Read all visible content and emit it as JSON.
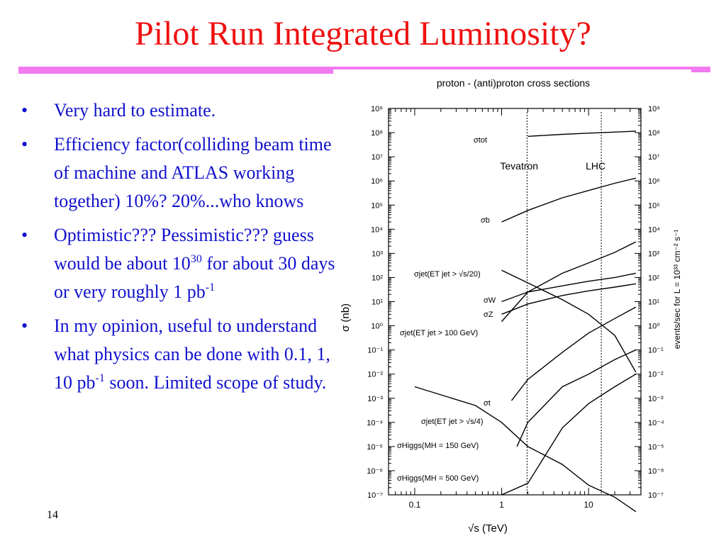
{
  "slide": {
    "title": "Pilot Run Integrated Luminosity?",
    "page_number": "14",
    "bullets": [
      {
        "text": "Very hard to estimate."
      },
      {
        "text": "Efficiency factor(colliding beam time of machine and ATLAS working together) 10%? 20%...who knows"
      },
      {
        "pre": "Optimistic??? Pessimistic??? guess would be about 10",
        "sup": "30",
        "mid": " for about 30 days or very roughly 1 pb",
        "sup2": "-1"
      },
      {
        "pre": "In my opinion, useful to understand what physics can be done with 0.1, 1, 10 pb",
        "sup": "-1",
        "post": " soon. Limited scope of study."
      }
    ],
    "colors": {
      "title": "#ee1111",
      "bullets": "#1111cc",
      "rule": "#f27af0"
    }
  },
  "chart_data": {
    "type": "line",
    "title": "proton - (anti)proton cross sections",
    "xlabel": "√s   (TeV)",
    "ylabel": "σ  (nb)",
    "y2label": "events/sec for L = 10³³ cm⁻² s⁻¹",
    "x_scale": "log",
    "y_scale": "log",
    "xlim": [
      0.05,
      40
    ],
    "ylim": [
      1e-07,
      1000000000.0
    ],
    "x_ticks": [
      "0.1",
      "1",
      "10"
    ],
    "y_ticks": [
      "10⁻⁷",
      "10⁻⁶",
      "10⁻⁵",
      "10⁻⁴",
      "10⁻³",
      "10⁻²",
      "10⁻¹",
      "10⁰",
      "10¹",
      "10²",
      "10³",
      "10⁴",
      "10⁵",
      "10⁶",
      "10⁷",
      "10⁸",
      "10⁹"
    ],
    "y2_ticks": [
      "10⁻⁷",
      "10⁻⁶",
      "10⁻⁵",
      "10⁻⁴",
      "10⁻³",
      "10⁻²",
      "10⁻¹",
      "10⁰",
      "10¹",
      "10²",
      "10³",
      "10⁴",
      "10⁵",
      "10⁶",
      "10⁷",
      "10⁸",
      "10⁹"
    ],
    "vertical_lines": [
      {
        "label": "Tevatron",
        "x": 1.96
      },
      {
        "label": "LHC",
        "x": 14
      }
    ],
    "series": [
      {
        "label": "σtot",
        "x": [
          2,
          5,
          10,
          20,
          35
        ],
        "y": [
          70000000.0,
          85000000.0,
          95000000.0,
          105000000.0,
          115000000.0
        ]
      },
      {
        "label": "σb",
        "x": [
          1,
          2,
          5,
          10,
          20,
          35
        ],
        "y": [
          20000.0,
          60000.0,
          200000.0,
          400000.0,
          800000.0,
          1300000.0
        ]
      },
      {
        "label": "σjet(ET jet > √s/20)",
        "x": [
          1,
          2,
          5,
          10,
          20,
          35
        ],
        "y": [
          200,
          60,
          12,
          3,
          0.4,
          0.012
        ]
      },
      {
        "label": "σW",
        "x": [
          1,
          2,
          5,
          10,
          20,
          35
        ],
        "y": [
          10,
          25,
          45,
          70,
          100,
          150
        ]
      },
      {
        "label": "σZ",
        "x": [
          1,
          2,
          5,
          10,
          20,
          35
        ],
        "y": [
          3,
          8,
          18,
          28,
          40,
          55
        ]
      },
      {
        "label": "σjet(ET jet > 100 GeV)",
        "x": [
          1,
          2,
          5,
          10,
          20,
          35
        ],
        "y": [
          1.5,
          25,
          150,
          400,
          1100,
          3000
        ]
      },
      {
        "label": "σt",
        "x": [
          1.3,
          2,
          5,
          10,
          20,
          35
        ],
        "y": [
          0.0008,
          0.006,
          0.08,
          0.5,
          2,
          6
        ]
      },
      {
        "label": "σjet(ET jet > √s/4)",
        "x": [
          0.1,
          0.5,
          1,
          2,
          5,
          10,
          20,
          35
        ],
        "y": [
          0.003,
          0.0005,
          0.0001,
          1e-05,
          1.8e-06,
          2.5e-07,
          8e-08,
          2e-08
        ]
      },
      {
        "label": "σHiggs(MH = 150 GeV)",
        "x": [
          1.5,
          2,
          5,
          10,
          20,
          35
        ],
        "y": [
          1e-05,
          0.0001,
          0.003,
          0.01,
          0.04,
          0.1
        ]
      },
      {
        "label": "σHiggs(MH = 500 GeV)",
        "x": [
          1,
          2,
          5,
          10,
          20,
          35
        ],
        "y": [
          1e-07,
          3e-07,
          6e-05,
          0.0006,
          0.003,
          0.01
        ]
      }
    ]
  }
}
